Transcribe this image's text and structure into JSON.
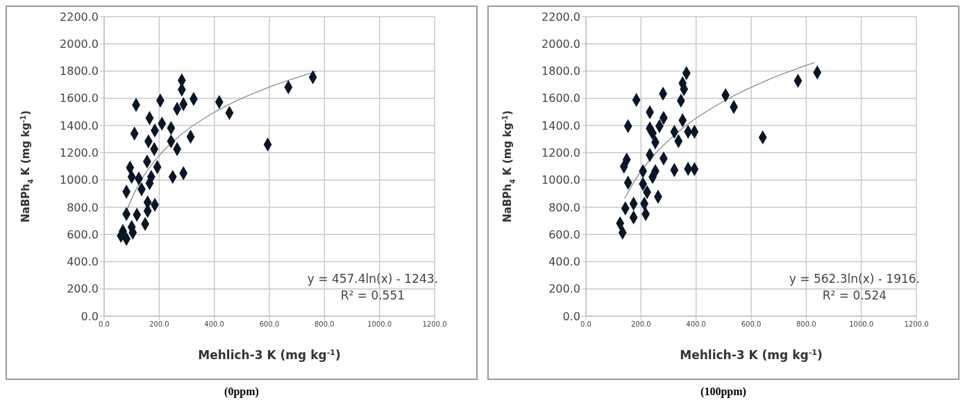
{
  "chart_data": [
    {
      "type": "scatter",
      "xlabel": "Mehlich-3 K (mg kg$^{-1}$)",
      "ylabel": "NaBPh$_{4}$ K (mg kg$^{-1}$)",
      "annotations": [
        "y = 457.4ln(x) - 1243.",
        "R² = 0.551",
        "(0ppm)"
      ],
      "xlim": [
        0,
        1200
      ],
      "ylim": [
        0,
        2200
      ],
      "xticks": [
        {
          "value": 0,
          "label": "0.0"
        },
        {
          "value": 200,
          "label": "200.0"
        },
        {
          "value": 400,
          "label": "400.0"
        },
        {
          "value": 600,
          "label": "600.0"
        },
        {
          "value": 800,
          "label": "800.0"
        },
        {
          "value": 1000,
          "label": "1000.0"
        },
        {
          "value": 1200,
          "label": "1200.0"
        }
      ],
      "yticks": [
        {
          "value": 0,
          "label": "0.0"
        },
        {
          "value": 200,
          "label": "200.0"
        },
        {
          "value": 400,
          "label": "400.0"
        },
        {
          "value": 600,
          "label": "600.0"
        },
        {
          "value": 800,
          "label": "800.0"
        },
        {
          "value": 1000,
          "label": "1000.0"
        },
        {
          "value": 1200,
          "label": "1200.0"
        },
        {
          "value": 1400,
          "label": "1400.0"
        },
        {
          "value": 1600,
          "label": "1600.0"
        },
        {
          "value": 1800,
          "label": "1800.0"
        },
        {
          "value": 2000,
          "label": "2000.0"
        },
        {
          "value": 2200,
          "label": "2200.0"
        }
      ],
      "grid": true,
      "marker": "diamond",
      "series": [
        {
          "type": "scatter",
          "color": "#0a1626",
          "x": [
            758,
            669,
            594,
            418,
            455,
            325,
            282,
            282,
            288,
            265,
            314,
            288,
            249,
            243,
            265,
            243,
            210,
            184,
            204,
            165,
            116,
            110,
            161,
            182,
            193,
            156,
            171,
            165,
            126,
            100,
            94,
            81,
            136,
            184,
            158,
            158,
            119,
            81,
            149,
            100,
            68,
            61,
            81,
            104
          ],
          "values": [
            1755,
            1682,
            1261,
            1573,
            1493,
            1595,
            1732,
            1664,
            1557,
            1523,
            1318,
            1050,
            1023,
            1284,
            1227,
            1382,
            1414,
            1364,
            1584,
            1455,
            1552,
            1341,
            1284,
            1227,
            1095,
            1136,
            1023,
            977,
            1011,
            1023,
            1091,
            914,
            932,
            818,
            836,
            773,
            745,
            750,
            677,
            655,
            625,
            591,
            568,
            614
          ]
        },
        {
          "type": "line",
          "color": "#8c8c8c",
          "marker": "none",
          "x": [
            80,
            100,
            150,
            200,
            300,
            400,
            500,
            600,
            770
          ],
          "values": [
            761,
            863,
            1049,
            1180,
            1366,
            1497,
            1600,
            1683,
            1797
          ]
        }
      ]
    },
    {
      "type": "scatter",
      "xlabel": "Mehlich-3 K (mg kg$^{-1}$)",
      "ylabel": "NaBPh$_{4}$ K (mg kg$^{-1}$)",
      "annotations": [
        "y = 562.3ln(x) - 1916.",
        "R² = 0.524",
        "(100ppm)"
      ],
      "xlim": [
        0,
        1200
      ],
      "ylim": [
        0,
        2200
      ],
      "xticks": [
        {
          "value": 0,
          "label": "0.0"
        },
        {
          "value": 200,
          "label": "200.0"
        },
        {
          "value": 400,
          "label": "400.0"
        },
        {
          "value": 600,
          "label": "600.0"
        },
        {
          "value": 800,
          "label": "800.0"
        },
        {
          "value": 1000,
          "label": "1000.0"
        },
        {
          "value": 1200,
          "label": "1200.0"
        }
      ],
      "yticks": [
        {
          "value": 0,
          "label": "0.0"
        },
        {
          "value": 200,
          "label": "200.0"
        },
        {
          "value": 400,
          "label": "400.0"
        },
        {
          "value": 600,
          "label": "600.0"
        },
        {
          "value": 800,
          "label": "800.0"
        },
        {
          "value": 1000,
          "label": "1000.0"
        },
        {
          "value": 1200,
          "label": "1200.0"
        },
        {
          "value": 1400,
          "label": "1400.0"
        },
        {
          "value": 1600,
          "label": "1600.0"
        },
        {
          "value": 1800,
          "label": "1800.0"
        },
        {
          "value": 2000,
          "label": "2000.0"
        },
        {
          "value": 2200,
          "label": "2200.0"
        }
      ],
      "grid": true,
      "marker": "diamond",
      "series": [
        {
          "type": "scatter",
          "color": "#0a1626",
          "x": [
            183,
            280,
            351,
            356,
            345,
            232,
            282,
            351,
            153,
            232,
            267,
            242,
            321,
            371,
            252,
            336,
            232,
            282,
            148,
            138,
            207,
            252,
            242,
            321,
            371,
            153,
            207,
            222,
            262,
            143,
            173,
            212,
            217,
            173,
            124,
            133,
            770,
            840,
            507,
            537,
            642,
            394,
            394,
            365
          ],
          "values": [
            1588,
            1634,
            1711,
            1668,
            1583,
            1498,
            1456,
            1439,
            1396,
            1379,
            1396,
            1345,
            1354,
            1354,
            1277,
            1286,
            1184,
            1158,
            1150,
            1099,
            1065,
            1065,
            1022,
            1073,
            1082,
            980,
            971,
            911,
            877,
            792,
            826,
            826,
            750,
            725,
            682,
            614,
            1729,
            1790,
            1623,
            1537,
            1313,
            1354,
            1080,
            1785
          ]
        },
        {
          "type": "line",
          "color": "#8c8c8c",
          "marker": "none",
          "x": [
            140,
            180,
            250,
            350,
            500,
            650,
            830
          ],
          "values": [
            863,
            1004,
            1189,
            1378,
            1579,
            1726,
            1863
          ]
        }
      ]
    }
  ]
}
